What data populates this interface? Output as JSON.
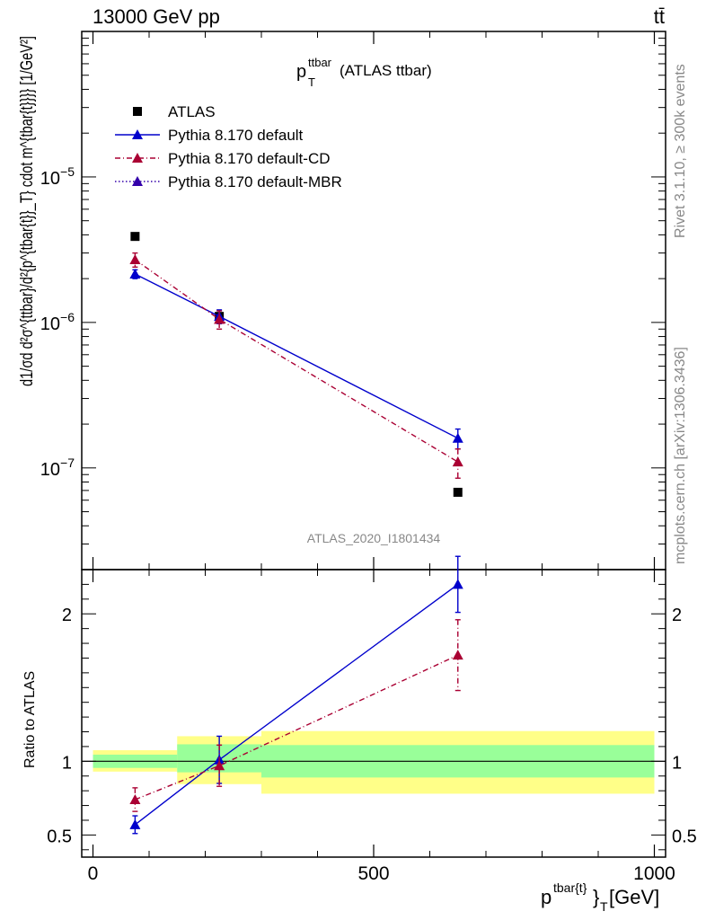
{
  "header": {
    "left": "13000 GeV pp",
    "right": "tt̄"
  },
  "side_labels": {
    "rivet": "Rivet 3.1.10, ≥ 300k events",
    "mcplots": "mcplots.cern.ch [arXiv:1306.3436]"
  },
  "chart_data": {
    "type": "scatter",
    "analysis_id": "ATLAS_2020_I1801434",
    "title": {
      "main": "p",
      "sup": "ttbar",
      "sub": "T",
      "suffix": " (ATLAS ttbar)"
    },
    "xlabel": {
      "main": "p",
      "sup": "tbar{t}",
      "rest": "}",
      "sub": "T",
      "unit": " [GeV]"
    },
    "ylabel_main": "d1/σd d²σ^{ttbar}/d²{p^{tbar{t}}_T} cdot m^{tbar{t}}}} [1/GeV²]",
    "ylabel_ratio": "Ratio to ATLAS",
    "xlim": [
      -20,
      1020
    ],
    "main_ylim": [
      2e-08,
      0.0001
    ],
    "ratio_ylim": [
      0.35,
      2.3
    ],
    "x_ticks": [
      0,
      500,
      1000
    ],
    "main_y_ticks": [
      {
        "value": 1e-05,
        "base": "10",
        "exp": "−5"
      },
      {
        "value": 1e-06,
        "base": "10",
        "exp": "−6"
      },
      {
        "value": 1e-07,
        "base": "10",
        "exp": "−7"
      }
    ],
    "ratio_y_ticks": [
      {
        "value": 0.5,
        "label": "0.5"
      },
      {
        "value": 1,
        "label": "1"
      },
      {
        "value": 2,
        "label": "2"
      }
    ],
    "bins": [
      {
        "lo": 0,
        "hi": 150,
        "x": 75
      },
      {
        "lo": 150,
        "hi": 300,
        "x": 225
      },
      {
        "lo": 300,
        "hi": 1000,
        "x": 650
      }
    ],
    "data": {
      "name": "ATLAS",
      "values": [
        3.9e-06,
        1.1e-06,
        6.8e-08
      ]
    },
    "bands": {
      "inner": [
        [
          0.955,
          1.045
        ],
        [
          0.925,
          1.115
        ],
        [
          0.89,
          1.11
        ]
      ],
      "outer": [
        [
          0.93,
          1.075
        ],
        [
          0.845,
          1.17
        ],
        [
          0.78,
          1.205
        ]
      ]
    },
    "series": [
      {
        "name": "Pythia 8.170 default",
        "color": "#0000cc",
        "dash": "solid",
        "values": [
          2.15e-06,
          1.1e-06,
          1.6e-07
        ],
        "errors": [
          1.5e-07,
          1.2e-07,
          2.5e-08
        ],
        "ratio": [
          0.57,
          1.01,
          2.2
        ],
        "ratio_err": [
          0.06,
          0.16,
          0.19
        ]
      },
      {
        "name": "Pythia 8.170 default-CD",
        "color": "#aa0033",
        "dash": "dashdot",
        "values": [
          2.7e-06,
          1.05e-06,
          1.1e-07
        ],
        "errors": [
          3e-07,
          1.5e-07,
          2.5e-08
        ],
        "ratio": [
          0.74,
          0.97,
          1.72
        ],
        "ratio_err": [
          0.08,
          0.14,
          0.24
        ]
      },
      {
        "name": "Pythia 8.170 default-MBR",
        "color": "#3300aa",
        "dash": "dotted",
        "values": [],
        "errors": [],
        "ratio": [],
        "ratio_err": []
      }
    ],
    "legend_position": "top-left"
  }
}
